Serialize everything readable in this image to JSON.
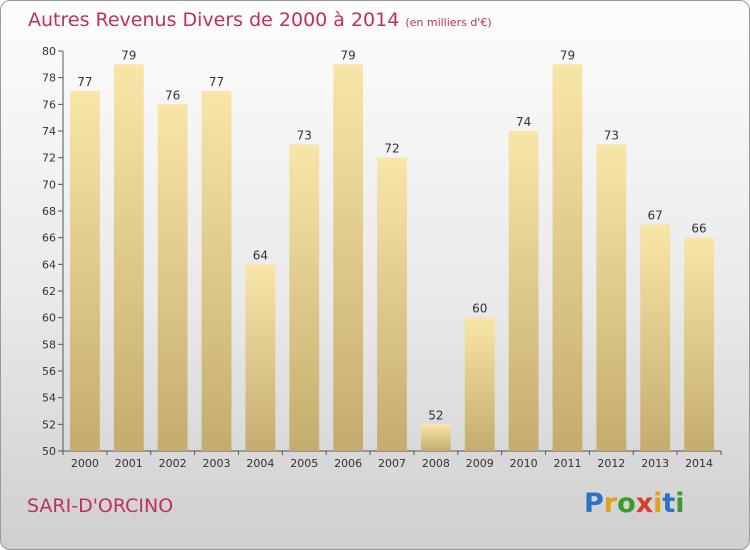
{
  "header": {
    "title": "Autres Revenus Divers de 2000 à 2014",
    "subtitle": "(en milliers d'€)"
  },
  "footer": {
    "commune": "SARI-D'ORCINO",
    "logo_letters": [
      "P",
      "r",
      "o",
      "x",
      "i",
      "t",
      "i"
    ],
    "logo_colors": [
      "#2a73c4",
      "#e2a21c",
      "#3a9a2a",
      "#d83c2c",
      "#e2a21c",
      "#2a73c4",
      "#3a9a2a"
    ]
  },
  "colors": {
    "title": "#c0305a",
    "bar_light": "#f8e6a8",
    "bar_dark": "#c4ac6e"
  },
  "chart_data": {
    "type": "bar",
    "categories": [
      "2000",
      "2001",
      "2002",
      "2003",
      "2004",
      "2005",
      "2006",
      "2007",
      "2008",
      "2009",
      "2010",
      "2011",
      "2012",
      "2013",
      "2014"
    ],
    "values": [
      77,
      79,
      76,
      77,
      64,
      73,
      79,
      72,
      52,
      60,
      74,
      79,
      73,
      67,
      66
    ],
    "ylim": [
      50,
      80
    ],
    "yticks": [
      50,
      52,
      54,
      56,
      58,
      60,
      62,
      64,
      66,
      68,
      70,
      72,
      74,
      76,
      78,
      80
    ],
    "grid": false,
    "data_labels": true
  }
}
